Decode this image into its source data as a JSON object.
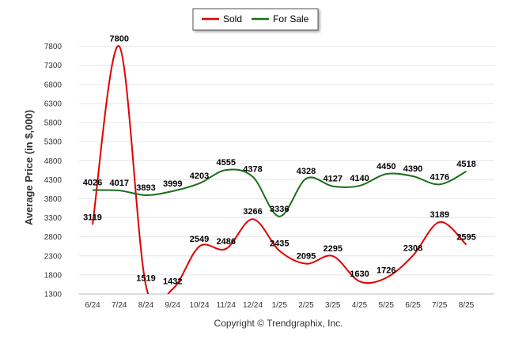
{
  "chart_data": {
    "type": "line",
    "ylabel": "Average Price (in $,000)",
    "credit": "Copyright © Trendgraphix, Inc.",
    "categories": [
      "6/24",
      "7/24",
      "8/24",
      "9/24",
      "10/24",
      "11/24",
      "12/24",
      "1/25",
      "2/25",
      "3/25",
      "4/25",
      "5/25",
      "6/25",
      "7/25",
      "8/25"
    ],
    "yticks": [
      1300,
      1800,
      2300,
      2800,
      3300,
      3800,
      4300,
      4800,
      5300,
      5800,
      6300,
      6800,
      7300,
      7800
    ],
    "ylim": [
      1300,
      8000
    ],
    "grid": true,
    "legend_position": "top-center",
    "series": [
      {
        "name": "Sold",
        "color": "#e00000",
        "values": [
          3119,
          7800,
          1519,
          1432,
          2549,
          2486,
          3266,
          2435,
          2095,
          2295,
          1630,
          1726,
          2308,
          3189,
          2595
        ],
        "labels": [
          "3119",
          "7800",
          "1519",
          "1432",
          "2549",
          "2486",
          "3266",
          "2435",
          "2095",
          "2295",
          "1630",
          "1726",
          "2308",
          "3189",
          "2595"
        ]
      },
      {
        "name": "For Sale",
        "color": "#1a6e1a",
        "values": [
          4026,
          4017,
          3893,
          3999,
          4203,
          4555,
          4378,
          3336,
          4328,
          4127,
          4140,
          4450,
          4390,
          4176,
          4518
        ],
        "labels": [
          "4026",
          "4017",
          "3893",
          "3999",
          "4203",
          "4555",
          "4378",
          "3336",
          "4328",
          "4127",
          "4140",
          "4450",
          "4390",
          "4176",
          "4518"
        ]
      }
    ]
  }
}
